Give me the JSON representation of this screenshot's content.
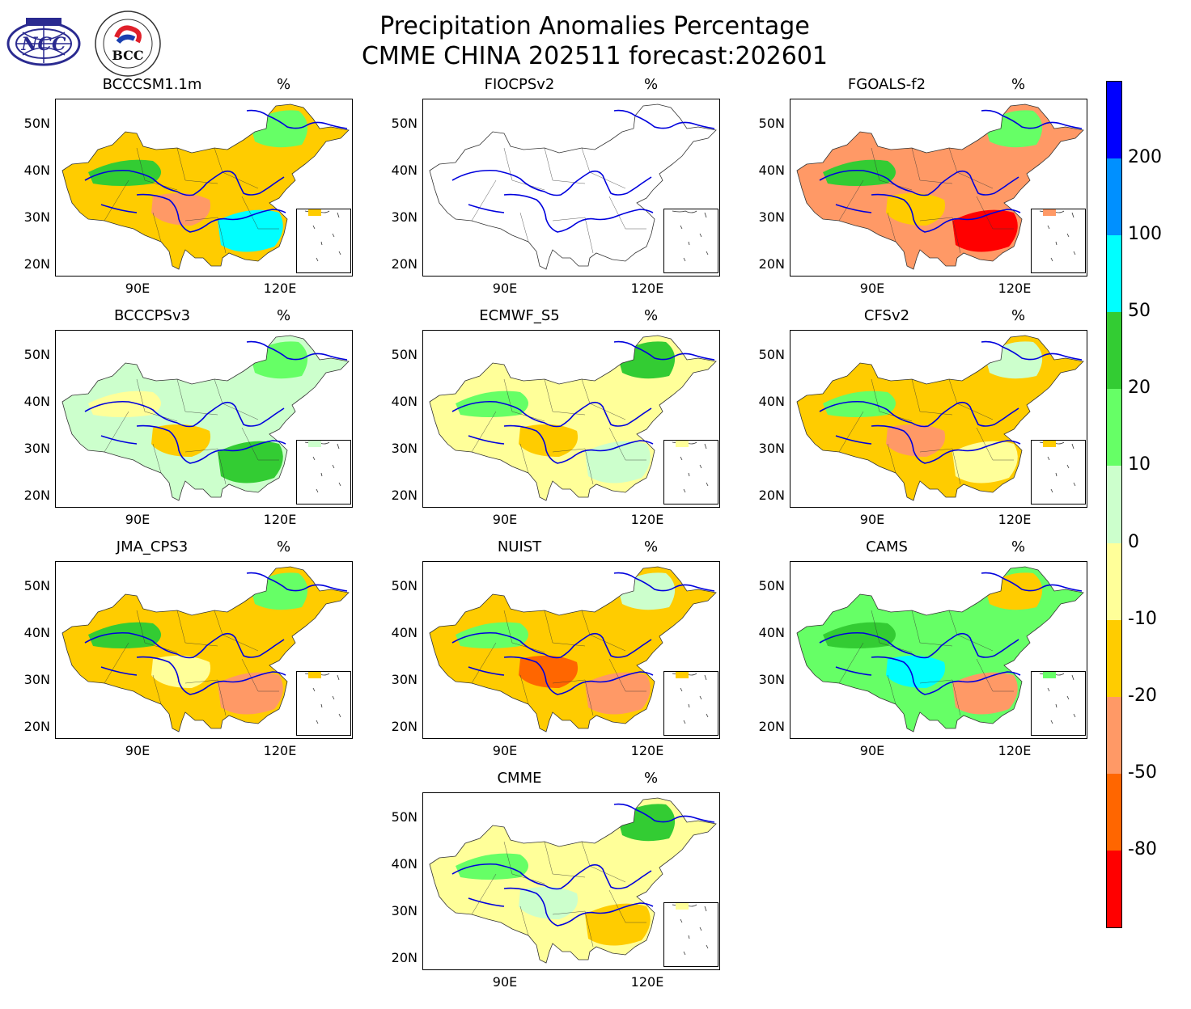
{
  "header": {
    "title_line1": "Precipitation Anomalies Percentage",
    "title_line2": "CMME CHINA 202511 forecast:202601"
  },
  "logos": [
    {
      "name": "NCC",
      "text": "NCC"
    },
    {
      "name": "BCC",
      "text": "BCC"
    }
  ],
  "colors": {
    "p200": "#0000ff",
    "p100": "#0090ff",
    "p50": "#00ffff",
    "p20": "#33cc33",
    "p10": "#66ff66",
    "p0": "#ccffcc",
    "m10": "#ffff99",
    "m20": "#ffcc00",
    "m50": "#ff9966",
    "m80": "#ff6600",
    "mmin": "#ff0000",
    "river": "#0000dd",
    "boundary": "#333333"
  },
  "colorbar": {
    "labels": [
      "200",
      "100",
      "50",
      "20",
      "10",
      "0",
      "-10",
      "-20",
      "-50",
      "-80"
    ],
    "segments": [
      "#0000ff",
      "#0090ff",
      "#00ffff",
      "#33cc33",
      "#66ff66",
      "#ccffcc",
      "#ffff99",
      "#ffcc00",
      "#ff9966",
      "#ff6600",
      "#ff0000"
    ]
  },
  "axes": {
    "lat_labels": [
      "50N",
      "40N",
      "30N",
      "20N"
    ],
    "lon_labels": [
      "90E",
      "120E"
    ]
  },
  "panels": [
    {
      "name": "BCCCSM1.1m",
      "unit": "%",
      "fill": "#ffcc00",
      "blobs": [
        "#33cc33",
        "#00ffff",
        "#ff9966",
        "#66ff66"
      ]
    },
    {
      "name": "FIOCPSv2",
      "unit": "%",
      "fill": "none",
      "blobs": []
    },
    {
      "name": "FGOALS-f2",
      "unit": "%",
      "fill": "#ff9966",
      "blobs": [
        "#33cc33",
        "#ff0000",
        "#ffcc00",
        "#66ff66"
      ]
    },
    {
      "name": "BCCCPSv3",
      "unit": "%",
      "fill": "#ccffcc",
      "blobs": [
        "#ffff99",
        "#33cc33",
        "#ffcc00",
        "#66ff66"
      ]
    },
    {
      "name": "ECMWF_S5",
      "unit": "%",
      "fill": "#ffff99",
      "blobs": [
        "#66ff66",
        "#ccffcc",
        "#ffcc00",
        "#33cc33"
      ]
    },
    {
      "name": "CFSv2",
      "unit": "%",
      "fill": "#ffcc00",
      "blobs": [
        "#66ff66",
        "#ffff99",
        "#ff9966",
        "#ccffcc"
      ]
    },
    {
      "name": "JMA_CPS3",
      "unit": "%",
      "fill": "#ffcc00",
      "blobs": [
        "#33cc33",
        "#ff9966",
        "#ffff99",
        "#66ff66"
      ]
    },
    {
      "name": "NUIST",
      "unit": "%",
      "fill": "#ffcc00",
      "blobs": [
        "#66ff66",
        "#ff9966",
        "#ff6600",
        "#ccffcc"
      ]
    },
    {
      "name": "CAMS",
      "unit": "%",
      "fill": "#66ff66",
      "blobs": [
        "#33cc33",
        "#ff9966",
        "#00ffff",
        "#ffcc00"
      ]
    },
    {
      "name": "CMME",
      "unit": "%",
      "fill": "#ffff99",
      "blobs": [
        "#66ff66",
        "#ffcc00",
        "#ccffcc",
        "#33cc33"
      ]
    }
  ]
}
